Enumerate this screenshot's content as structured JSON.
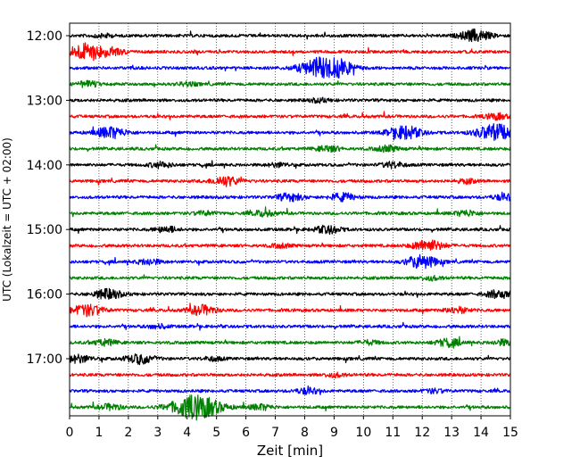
{
  "chart_data": {
    "type": "line",
    "title": "",
    "xlabel": "Zeit  [min]",
    "ylabel": "UTC (Lokalzeit = UTC + 02:00)",
    "xlim": [
      0,
      15
    ],
    "x_ticks": [
      0,
      1,
      2,
      3,
      4,
      5,
      6,
      7,
      8,
      9,
      10,
      11,
      12,
      13,
      14,
      15
    ],
    "y_tick_labels": [
      "12:00",
      "13:00",
      "14:00",
      "15:00",
      "16:00",
      "17:00"
    ],
    "grid": "vertical dotted lines at each minute",
    "colors": [
      "#000000",
      "#ff0000",
      "#0000ff",
      "#008000"
    ],
    "rows": [
      {
        "start": "12:00",
        "color": "#000000",
        "events": [
          {
            "t": 1.1,
            "a": 2
          },
          {
            "t": 13.8,
            "a": 6
          }
        ]
      },
      {
        "start": "12:15",
        "color": "#ff0000",
        "events": [
          {
            "t": 0.6,
            "a": 9
          },
          {
            "t": 1.5,
            "a": 3
          }
        ]
      },
      {
        "start": "12:30",
        "color": "#0000ff",
        "events": [
          {
            "t": 8.6,
            "a": 11
          },
          {
            "t": 9.3,
            "a": 4
          }
        ]
      },
      {
        "start": "12:45",
        "color": "#008000",
        "events": [
          {
            "t": 0.6,
            "a": 3
          },
          {
            "t": 4.0,
            "a": 2
          }
        ]
      },
      {
        "start": "13:00",
        "color": "#000000",
        "events": [
          {
            "t": 8.5,
            "a": 2
          }
        ]
      },
      {
        "start": "13:15",
        "color": "#ff0000",
        "events": [
          {
            "t": 14.5,
            "a": 3
          }
        ]
      },
      {
        "start": "13:30",
        "color": "#0000ff",
        "events": [
          {
            "t": 1.4,
            "a": 6
          },
          {
            "t": 11.4,
            "a": 7
          },
          {
            "t": 14.5,
            "a": 9
          }
        ]
      },
      {
        "start": "13:45",
        "color": "#008000",
        "events": [
          {
            "t": 8.8,
            "a": 3
          },
          {
            "t": 10.8,
            "a": 3
          }
        ]
      },
      {
        "start": "14:00",
        "color": "#000000",
        "events": [
          {
            "t": 3.1,
            "a": 3
          },
          {
            "t": 7.1,
            "a": 2
          },
          {
            "t": 11.0,
            "a": 3
          }
        ]
      },
      {
        "start": "14:15",
        "color": "#ff0000",
        "events": [
          {
            "t": 5.3,
            "a": 5
          },
          {
            "t": 13.5,
            "a": 2
          }
        ]
      },
      {
        "start": "14:30",
        "color": "#0000ff",
        "events": [
          {
            "t": 7.5,
            "a": 4
          },
          {
            "t": 9.3,
            "a": 4
          },
          {
            "t": 14.8,
            "a": 3
          }
        ]
      },
      {
        "start": "14:45",
        "color": "#008000",
        "events": [
          {
            "t": 4.6,
            "a": 2
          },
          {
            "t": 6.6,
            "a": 3
          },
          {
            "t": 13.5,
            "a": 3
          }
        ]
      },
      {
        "start": "15:00",
        "color": "#000000",
        "events": [
          {
            "t": 3.3,
            "a": 3
          },
          {
            "t": 8.8,
            "a": 4
          }
        ]
      },
      {
        "start": "15:15",
        "color": "#ff0000",
        "events": [
          {
            "t": 12.2,
            "a": 6
          },
          {
            "t": 7.2,
            "a": 2
          }
        ]
      },
      {
        "start": "15:30",
        "color": "#0000ff",
        "events": [
          {
            "t": 2.7,
            "a": 3
          },
          {
            "t": 11.8,
            "a": 3
          },
          {
            "t": 12.1,
            "a": 5
          }
        ]
      },
      {
        "start": "15:45",
        "color": "#008000",
        "events": [
          {
            "t": 12.3,
            "a": 2
          }
        ]
      },
      {
        "start": "16:00",
        "color": "#000000",
        "events": [
          {
            "t": 1.3,
            "a": 5
          },
          {
            "t": 14.6,
            "a": 4
          }
        ]
      },
      {
        "start": "16:15",
        "color": "#ff0000",
        "events": [
          {
            "t": 0.6,
            "a": 6
          },
          {
            "t": 4.5,
            "a": 5
          },
          {
            "t": 13.2,
            "a": 3
          }
        ]
      },
      {
        "start": "16:30",
        "color": "#0000ff",
        "events": [
          {
            "t": 3.0,
            "a": 2
          }
        ]
      },
      {
        "start": "16:45",
        "color": "#008000",
        "events": [
          {
            "t": 1.2,
            "a": 3
          },
          {
            "t": 10.2,
            "a": 2
          },
          {
            "t": 12.9,
            "a": 4
          },
          {
            "t": 14.8,
            "a": 3
          }
        ]
      },
      {
        "start": "17:00",
        "color": "#000000",
        "events": [
          {
            "t": 0.3,
            "a": 4
          },
          {
            "t": 2.4,
            "a": 5
          },
          {
            "t": 4.9,
            "a": 2
          }
        ]
      },
      {
        "start": "17:15",
        "color": "#ff0000",
        "events": [
          {
            "t": 9.0,
            "a": 2
          }
        ]
      },
      {
        "start": "17:30",
        "color": "#0000ff",
        "events": [
          {
            "t": 8.1,
            "a": 3
          },
          {
            "t": 12.4,
            "a": 2
          }
        ]
      },
      {
        "start": "17:45",
        "color": "#008000",
        "events": [
          {
            "t": 4.3,
            "a": 13
          },
          {
            "t": 1.4,
            "a": 3
          },
          {
            "t": 6.5,
            "a": 3
          }
        ]
      }
    ]
  }
}
